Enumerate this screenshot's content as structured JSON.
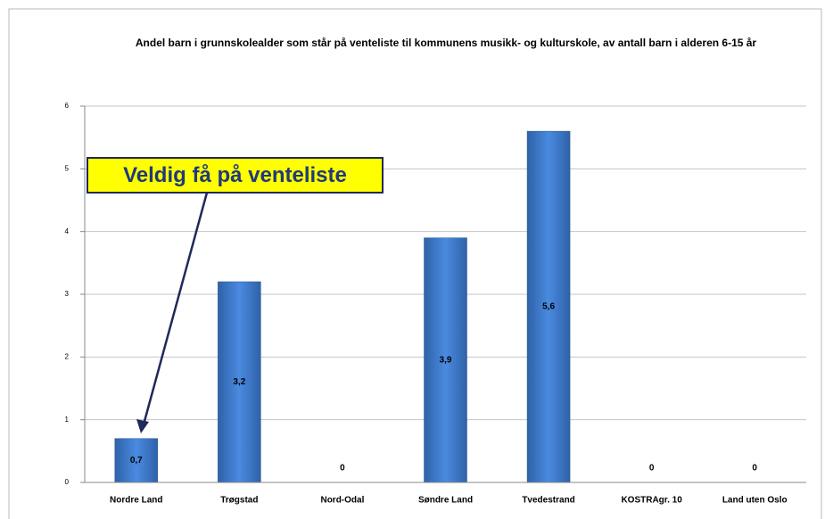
{
  "chart_data": {
    "type": "bar",
    "title": "Andel barn i grunnskolealder som står på venteliste til kommunens musikk- og kulturskole, av antall barn i alderen 6-15 år",
    "categories": [
      "Nordre Land",
      "Trøgstad",
      "Nord-Odal",
      "Søndre Land",
      "Tvedestrand",
      "KOSTRAgr. 10",
      "Land uten Oslo"
    ],
    "values": [
      0.7,
      3.2,
      0,
      3.9,
      5.6,
      0,
      0
    ],
    "value_labels": [
      "0,7",
      "3,2",
      "0",
      "3,9",
      "5,6",
      "0",
      "0"
    ],
    "color": "#3d7ccc",
    "ylim": [
      0,
      6
    ],
    "yticks": [
      0,
      1,
      2,
      3,
      4,
      5,
      6
    ],
    "grid": true,
    "annotation": "Veldig få på venteliste"
  }
}
